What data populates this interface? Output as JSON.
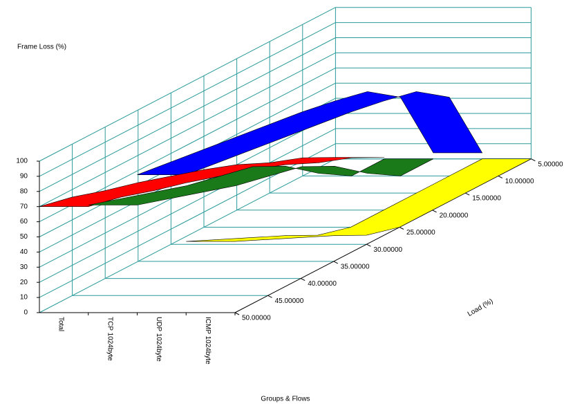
{
  "chart_data": {
    "type": "ribbon3d",
    "y_label": "Frame Loss (%)",
    "x_label": "Groups & Flows",
    "depth_label": "Load (%)",
    "categories": [
      "5.00000",
      "10.00000",
      "15.00000",
      "20.00000",
      "25.00000",
      "30.00000",
      "35.00000",
      "40.00000",
      "45.00000",
      "50.00000"
    ],
    "series": [
      {
        "name": "Total",
        "color": "#ff0000",
        "values": [
          1,
          12,
          20,
          30,
          38,
          45,
          52,
          58,
          65,
          70
        ]
      },
      {
        "name": "TCP 1024byte",
        "color": "#1a7a1a",
        "values": [
          0,
          0,
          13,
          29,
          40,
          45,
          50,
          57,
          64,
          71
        ]
      },
      {
        "name": "UDP 1024byte",
        "color": "#0000ff",
        "values": [
          4,
          52,
          67,
          72,
          76,
          79,
          82,
          85,
          88,
          91
        ]
      },
      {
        "name": "ICMP 1024byte",
        "color": "#ffff00",
        "values": [
          0,
          0,
          0,
          0,
          0,
          6,
          17,
          27,
          37,
          47
        ]
      }
    ],
    "ylim": [
      0,
      100
    ],
    "yticks": [
      0,
      10,
      20,
      30,
      40,
      50,
      60,
      70,
      80,
      90,
      100
    ],
    "grid": true
  }
}
